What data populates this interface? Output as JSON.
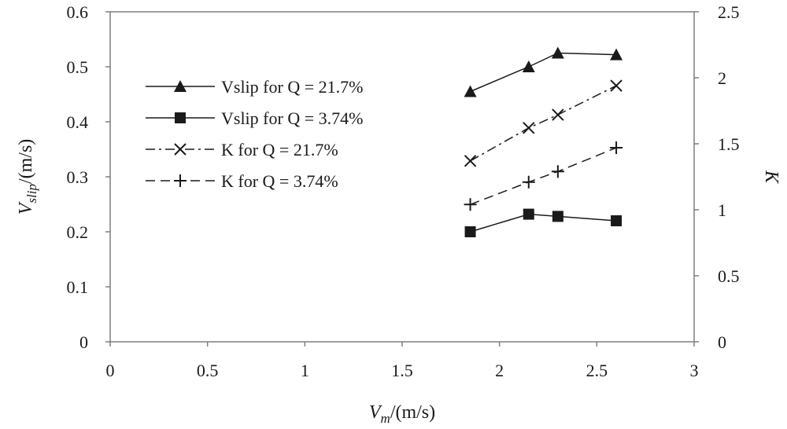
{
  "chart_data": {
    "type": "line",
    "title": "",
    "x": [
      1.85,
      2.15,
      2.3,
      2.6
    ],
    "xlabel": {
      "main": "V",
      "sub": "m",
      "unit": "/(m/s)"
    },
    "ylabel_left": {
      "main": "V",
      "sub": "slip",
      "unit": "/(m/s)"
    },
    "ylabel_right": "K",
    "xlim": [
      0,
      3
    ],
    "ylim_left": [
      0,
      0.6
    ],
    "ylim_right": [
      0,
      2.5
    ],
    "x_ticks": [
      "0",
      "0.5",
      "1",
      "1.5",
      "2",
      "2.5",
      "3"
    ],
    "y_left_ticks": [
      "0",
      "0.1",
      "0.2",
      "0.3",
      "0.4",
      "0.5",
      "0.6"
    ],
    "y_right_ticks": [
      "0",
      "0.5",
      "1",
      "1.5",
      "2",
      "2.5"
    ],
    "legend_position": "upper-left",
    "grid": false,
    "series": [
      {
        "name": "Vslip for Q = 21.7%",
        "axis": "left",
        "marker": "triangle",
        "line": "solid",
        "values": [
          0.455,
          0.5,
          0.525,
          0.522
        ]
      },
      {
        "name": "Vslip for Q = 3.74%",
        "axis": "left",
        "marker": "square",
        "line": "solid",
        "values": [
          0.2,
          0.232,
          0.228,
          0.22
        ]
      },
      {
        "name": "K for Q = 21.7%",
        "axis": "right",
        "marker": "x",
        "line": "dashdot",
        "values": [
          1.37,
          1.62,
          1.72,
          1.94
        ]
      },
      {
        "name": "K for Q = 3.74%",
        "axis": "right",
        "marker": "plus",
        "line": "dashed",
        "values": [
          1.04,
          1.21,
          1.29,
          1.47
        ]
      }
    ]
  },
  "colors": {
    "axis": "#7f7f7f",
    "series": "#1a1a1a",
    "text": "#1a1a1a"
  }
}
